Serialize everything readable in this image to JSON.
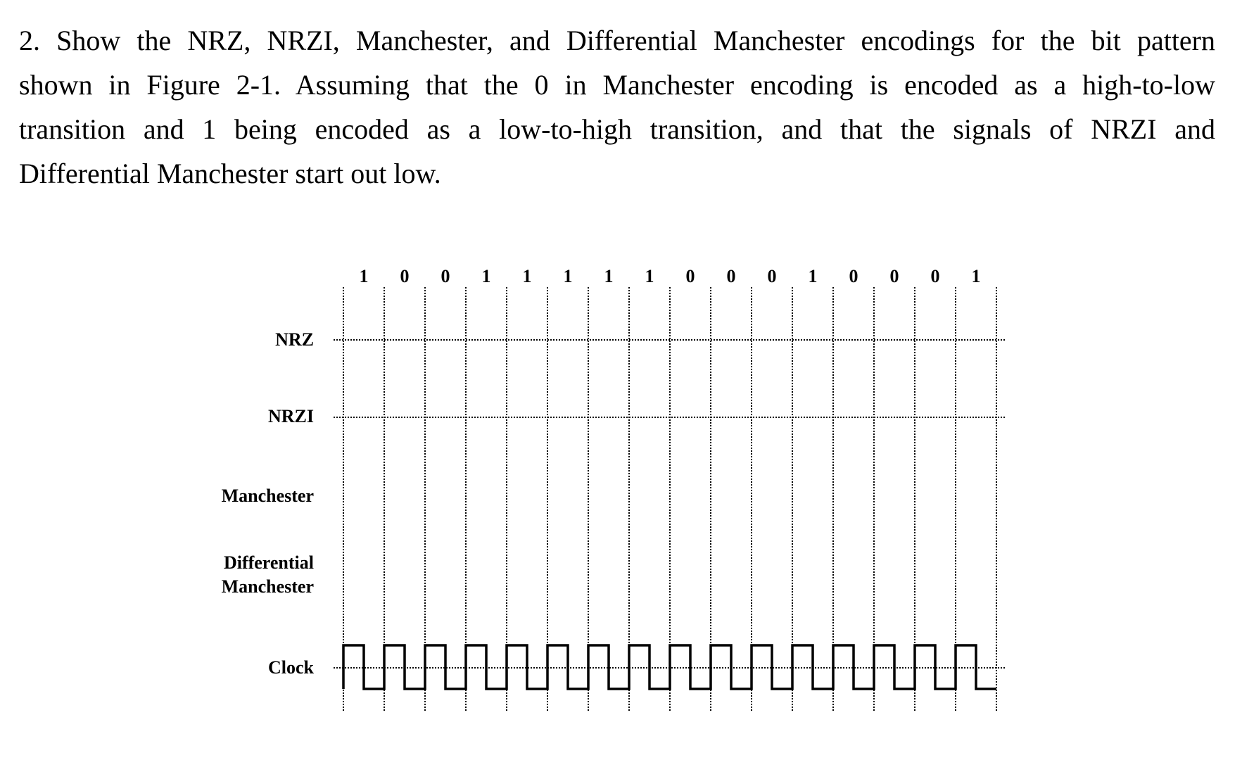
{
  "question": {
    "lines": [
      "2. Show the NRZ, NRZI, Manchester, and Differential Manchester encodings for the bit pattern",
      "shown in Figure 2-1. Assuming that the 0 in Manchester encoding is encoded as a high-to-low",
      "transition and 1 being encoded as a low-to-high transition, and that the signals of NRZI and",
      "Differential Manchester start out low."
    ]
  },
  "figure": {
    "bits": [
      "1",
      "0",
      "0",
      "1",
      "1",
      "1",
      "1",
      "1",
      "0",
      "0",
      "0",
      "1",
      "0",
      "0",
      "0",
      "1"
    ],
    "rows": {
      "nrz": "NRZ",
      "nrzi": "NRZI",
      "manchester": "Manchester",
      "diff_line1": "Differential",
      "diff_line2": "Manchester",
      "clock": "Clock"
    },
    "line_color": "#000000"
  }
}
